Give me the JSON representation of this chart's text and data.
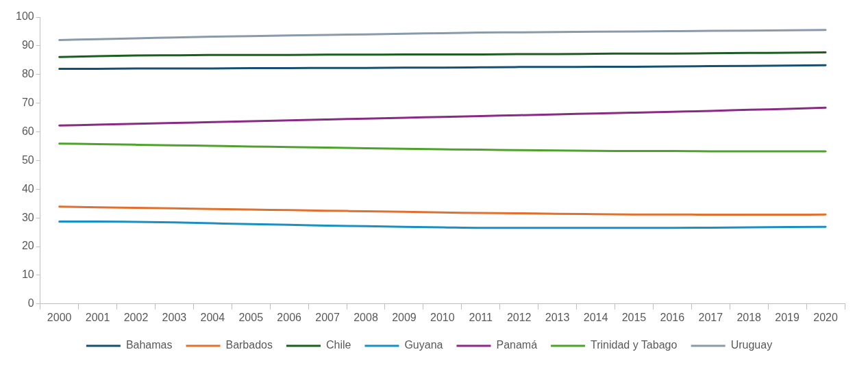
{
  "chart_data": {
    "type": "line",
    "categories": [
      "2000",
      "2001",
      "2002",
      "2003",
      "2004",
      "2005",
      "2006",
      "2007",
      "2008",
      "2009",
      "2010",
      "2011",
      "2012",
      "2013",
      "2014",
      "2015",
      "2016",
      "2017",
      "2018",
      "2019",
      "2020"
    ],
    "ylim": [
      0,
      100
    ],
    "yticks": [
      0,
      10,
      20,
      30,
      40,
      50,
      60,
      70,
      80,
      90,
      100
    ],
    "grid": false,
    "legend": "bottom",
    "marker": "none",
    "line_style": "solid",
    "series": [
      {
        "name": "Bahamas",
        "color": "#17506f",
        "values": [
          82.0,
          82.0,
          82.1,
          82.1,
          82.1,
          82.2,
          82.2,
          82.3,
          82.3,
          82.4,
          82.4,
          82.5,
          82.6,
          82.6,
          82.7,
          82.7,
          82.8,
          82.9,
          83.0,
          83.1,
          83.2
        ]
      },
      {
        "name": "Barbados",
        "color": "#e0702e",
        "values": [
          33.9,
          33.7,
          33.5,
          33.3,
          33.1,
          32.9,
          32.7,
          32.5,
          32.3,
          32.1,
          31.9,
          31.7,
          31.6,
          31.4,
          31.3,
          31.2,
          31.2,
          31.1,
          31.1,
          31.1,
          31.2
        ]
      },
      {
        "name": "Chile",
        "color": "#1b5e20",
        "values": [
          86.1,
          86.4,
          86.6,
          86.7,
          86.8,
          86.8,
          86.8,
          86.9,
          86.9,
          87.0,
          87.0,
          87.0,
          87.1,
          87.1,
          87.2,
          87.3,
          87.3,
          87.4,
          87.5,
          87.6,
          87.7
        ]
      },
      {
        "name": "Guyana",
        "color": "#1a8fc2",
        "values": [
          28.7,
          28.7,
          28.6,
          28.4,
          28.1,
          27.8,
          27.6,
          27.3,
          27.1,
          26.9,
          26.7,
          26.5,
          26.5,
          26.5,
          26.5,
          26.5,
          26.5,
          26.6,
          26.7,
          26.8,
          26.9
        ]
      },
      {
        "name": "Panamá",
        "color": "#8b2a85",
        "values": [
          62.2,
          62.5,
          62.8,
          63.1,
          63.4,
          63.7,
          64.0,
          64.3,
          64.6,
          64.9,
          65.2,
          65.5,
          65.8,
          66.1,
          66.4,
          66.7,
          67.0,
          67.3,
          67.7,
          68.0,
          68.4
        ]
      },
      {
        "name": "Trinidad y Tabago",
        "color": "#4ea22c",
        "values": [
          55.9,
          55.7,
          55.5,
          55.3,
          55.1,
          54.9,
          54.7,
          54.5,
          54.3,
          54.1,
          53.9,
          53.8,
          53.6,
          53.5,
          53.4,
          53.3,
          53.3,
          53.2,
          53.2,
          53.2,
          53.2
        ]
      },
      {
        "name": "Uruguay",
        "color": "#8a9aab",
        "values": [
          92.0,
          92.3,
          92.6,
          92.9,
          93.2,
          93.4,
          93.6,
          93.8,
          94.0,
          94.2,
          94.4,
          94.6,
          94.7,
          94.8,
          94.9,
          95.0,
          95.1,
          95.2,
          95.3,
          95.4,
          95.5
        ]
      }
    ]
  }
}
